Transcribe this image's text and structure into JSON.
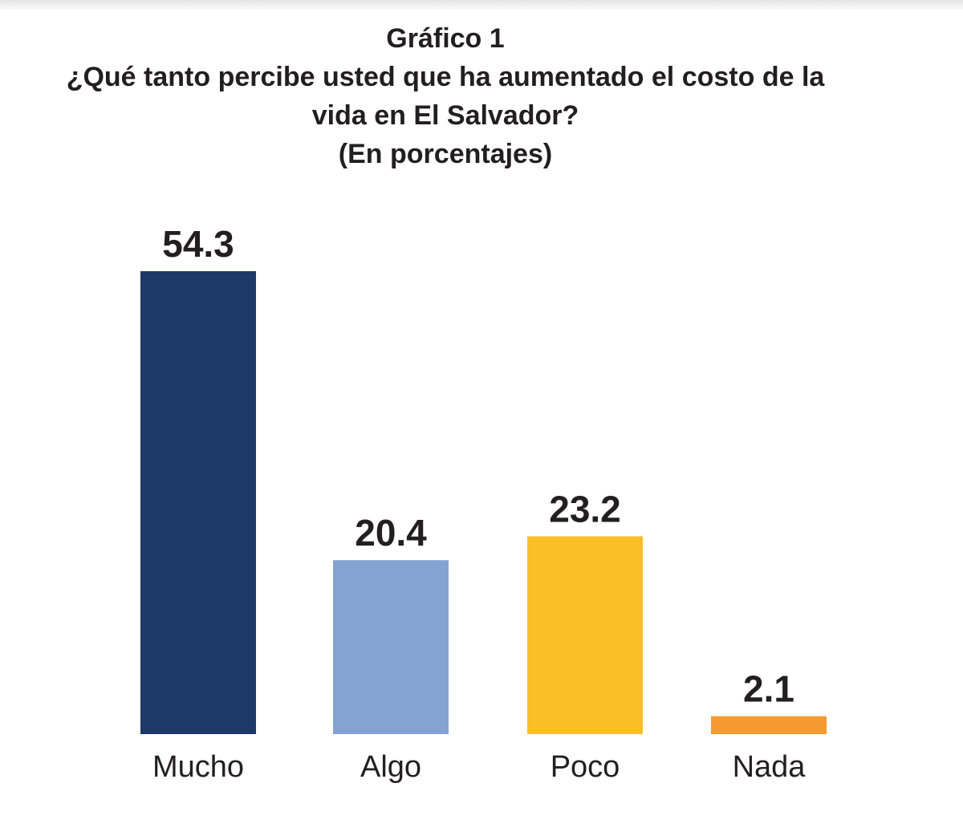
{
  "chart_data": {
    "type": "bar",
    "title": "Gráfico 1",
    "subtitle_lines": [
      "¿Qué tanto percibe usted que ha aumentado el costo de la",
      "vida en El Salvador?",
      "(En porcentajes)"
    ],
    "categories": [
      "Mucho",
      "Algo",
      "Poco",
      "Nada"
    ],
    "values": [
      54.3,
      20.4,
      23.2,
      2.1
    ],
    "value_labels": [
      "54.3",
      "20.4",
      "23.2",
      "2.1"
    ],
    "colors": [
      "#1d3a66",
      "#84a3d3",
      "#fbbe26",
      "#f39a33"
    ],
    "ylim": [
      0,
      54.3
    ],
    "grid": false,
    "legend": "none"
  }
}
